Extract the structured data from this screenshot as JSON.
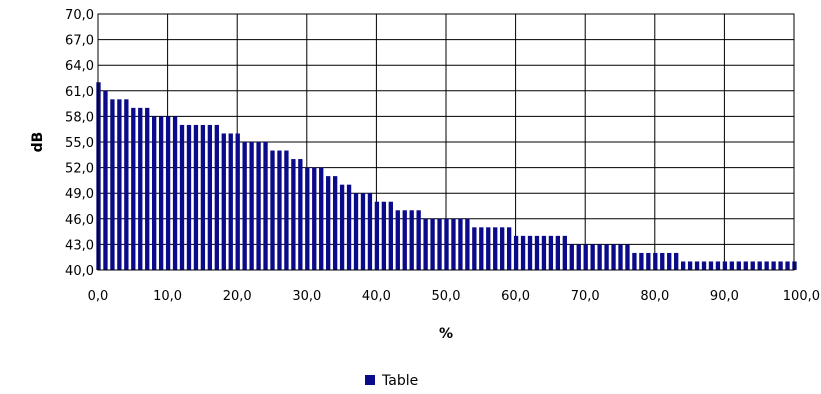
{
  "chart_data": {
    "type": "bar",
    "title": "",
    "xlabel": "%",
    "ylabel": "dB",
    "xlim": [
      0,
      100
    ],
    "ylim": [
      40,
      70
    ],
    "x_ticks": [
      "0,0",
      "10,0",
      "20,0",
      "30,0",
      "40,0",
      "50,0",
      "60,0",
      "70,0",
      "80,0",
      "90,0",
      "100,0"
    ],
    "y_ticks": [
      "40,0",
      "43,0",
      "46,0",
      "49,0",
      "52,0",
      "55,0",
      "58,0",
      "61,0",
      "64,0",
      "67,0",
      "70,0"
    ],
    "grid": true,
    "legend_position": "bottom",
    "bar_color": "#0a0a8a",
    "series": [
      {
        "name": "Table",
        "x": [
          0,
          1,
          2,
          3,
          4,
          5,
          6,
          7,
          8,
          9,
          10,
          11,
          12,
          13,
          14,
          15,
          16,
          17,
          18,
          19,
          20,
          21,
          22,
          23,
          24,
          25,
          26,
          27,
          28,
          29,
          30,
          31,
          32,
          33,
          34,
          35,
          36,
          37,
          38,
          39,
          40,
          41,
          42,
          43,
          44,
          45,
          46,
          47,
          48,
          49,
          50,
          51,
          52,
          53,
          54,
          55,
          56,
          57,
          58,
          59,
          60,
          61,
          62,
          63,
          64,
          65,
          66,
          67,
          68,
          69,
          70,
          71,
          72,
          73,
          74,
          75,
          76,
          77,
          78,
          79,
          80,
          81,
          82,
          83,
          84,
          85,
          86,
          87,
          88,
          89,
          90,
          91,
          92,
          93,
          94,
          95,
          96,
          97,
          98,
          99,
          100
        ],
        "values": [
          62,
          61,
          60,
          60,
          60,
          59,
          59,
          59,
          58,
          58,
          58,
          58,
          57,
          57,
          57,
          57,
          57,
          57,
          56,
          56,
          56,
          55,
          55,
          55,
          55,
          54,
          54,
          54,
          53,
          53,
          52,
          52,
          52,
          51,
          51,
          50,
          50,
          49,
          49,
          49,
          48,
          48,
          48,
          47,
          47,
          47,
          47,
          46,
          46,
          46,
          46,
          46,
          46,
          46,
          45,
          45,
          45,
          45,
          45,
          45,
          44,
          44,
          44,
          44,
          44,
          44,
          44,
          44,
          43,
          43,
          43,
          43,
          43,
          43,
          43,
          43,
          43,
          42,
          42,
          42,
          42,
          42,
          42,
          42,
          41,
          41,
          41,
          41,
          41,
          41,
          41,
          41,
          41,
          41,
          41,
          41,
          41,
          41,
          41,
          41,
          41
        ]
      }
    ]
  }
}
